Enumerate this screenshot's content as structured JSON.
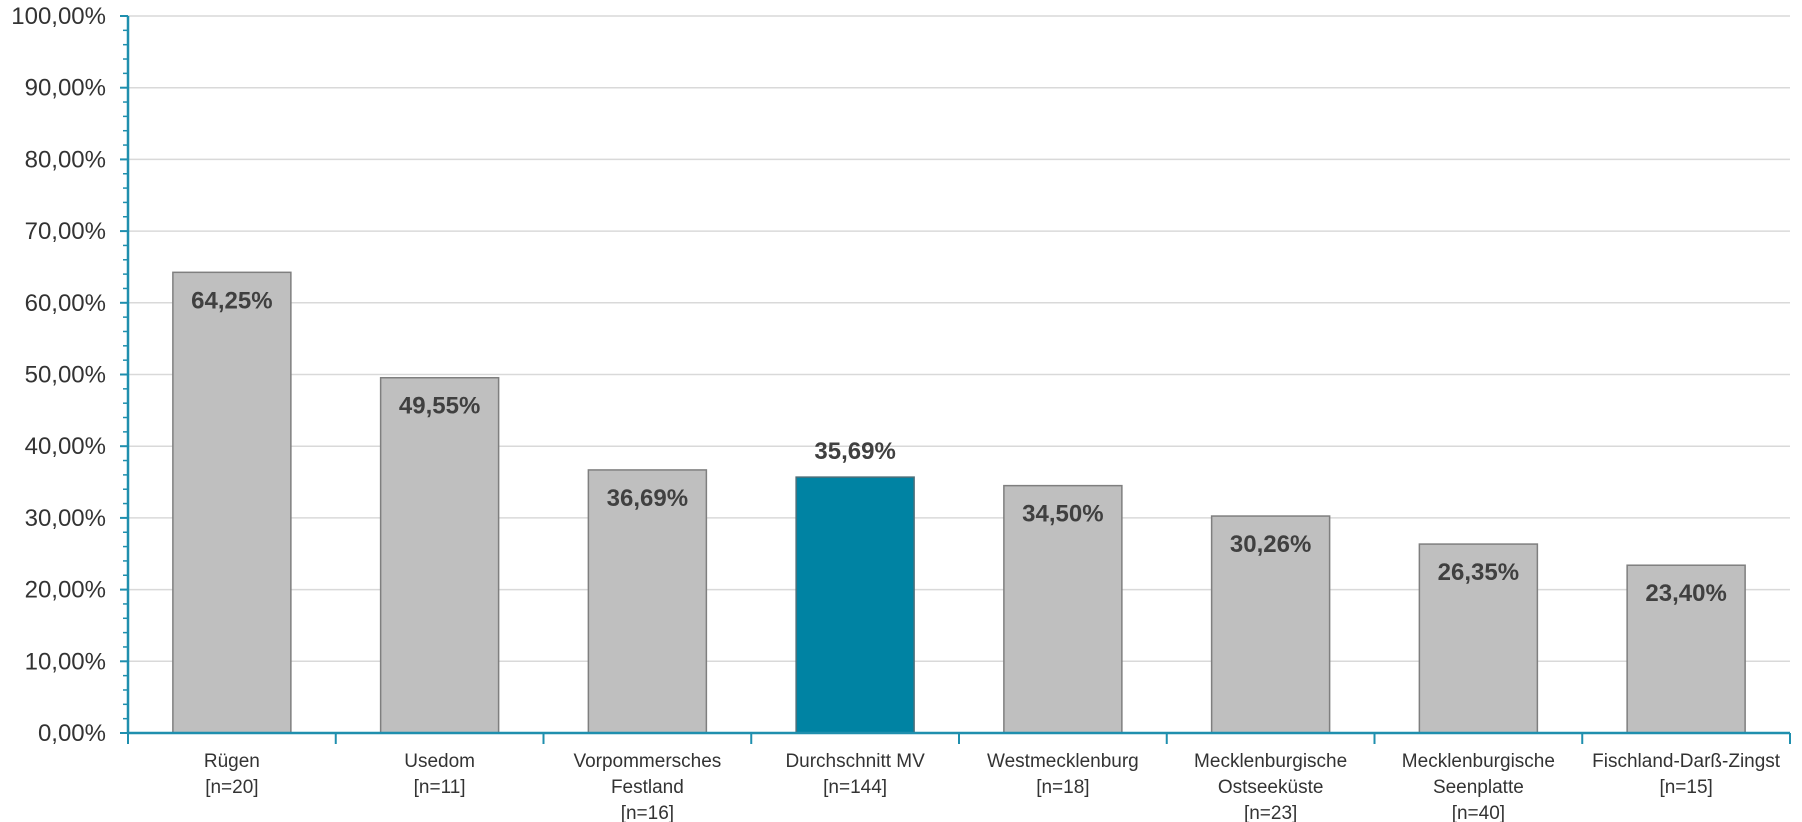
{
  "chart_data": {
    "type": "bar",
    "categories": [
      [
        "Rügen",
        "[n=20]"
      ],
      [
        "Usedom",
        "[n=11]"
      ],
      [
        "Vorpommersches",
        "Festland",
        "[n=16]"
      ],
      [
        "Durchschnitt MV",
        "[n=144]"
      ],
      [
        "Westmecklenburg",
        "[n=18]"
      ],
      [
        "Mecklenburgische",
        "Ostseeküste",
        "[n=23]"
      ],
      [
        "Mecklenburgische",
        "Seenplatte",
        "[n=40]"
      ],
      [
        "Fischland-Darß-Zingst",
        "[n=15]"
      ]
    ],
    "values": [
      64.25,
      49.55,
      36.69,
      35.69,
      34.5,
      30.26,
      26.35,
      23.4
    ],
    "data_labels": [
      "64,25%",
      "49,55%",
      "36,69%",
      "35,69%",
      "34,50%",
      "30,26%",
      "26,35%",
      "23,40%"
    ],
    "highlight_index": 3,
    "ylim": [
      0,
      100
    ],
    "yticks": [
      0,
      10,
      20,
      30,
      40,
      50,
      60,
      70,
      80,
      90,
      100
    ],
    "ytick_labels": [
      "0,00%",
      "10,00%",
      "20,00%",
      "30,00%",
      "40,00%",
      "50,00%",
      "60,00%",
      "70,00%",
      "80,00%",
      "90,00%",
      "100,00%"
    ],
    "title": "",
    "xlabel": "",
    "ylabel": "",
    "grid": true,
    "colors": {
      "bar": "#bfbfbf",
      "bar_stroke": "#7f7f7f",
      "highlight": "#0083a3",
      "axis": "#1f8fae",
      "grid": "#d9d9d9"
    }
  }
}
